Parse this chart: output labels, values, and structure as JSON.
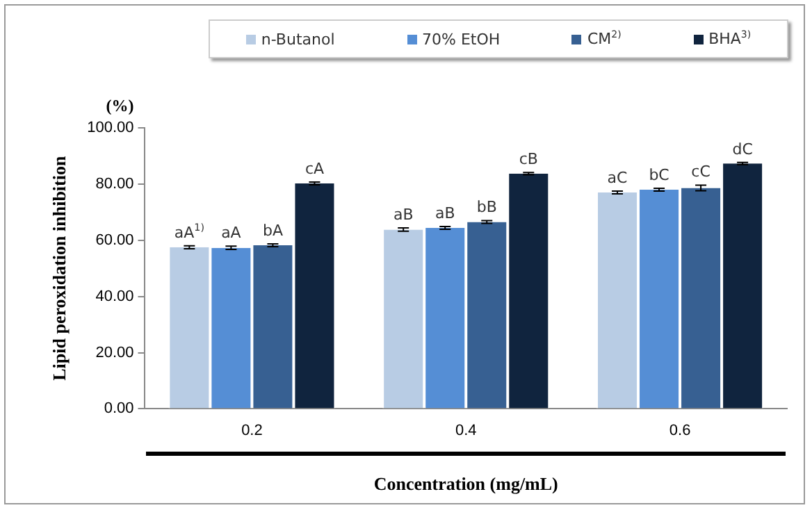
{
  "chart_data": {
    "type": "bar",
    "xlabel": "Concentration (mg/mL)",
    "ylabel": "Lipid peroxidation inhibition",
    "annotations": [
      "(%)",
      "aA$^{1)}$",
      "aA",
      "bA",
      "cA",
      "aB",
      "aB",
      "bB",
      "cB",
      "aC",
      "bC",
      "cC",
      "dC"
    ],
    "categories": [
      "0.2",
      "0.4",
      "0.6"
    ],
    "ylim": [
      0,
      100
    ],
    "yticks": [
      {
        "value": 0,
        "label": "0.00"
      },
      {
        "value": 20,
        "label": "20.00"
      },
      {
        "value": 40,
        "label": "40.00"
      },
      {
        "value": 60,
        "label": "60.00"
      },
      {
        "value": 80,
        "label": "80.00"
      },
      {
        "value": 100,
        "label": "100.00"
      }
    ],
    "grid": false,
    "legend": "top",
    "series": [
      {
        "name": "n-Butanol",
        "color": "#b8cce4",
        "values": [
          57.5,
          63.8,
          77.0
        ],
        "errors": [
          0.5,
          0.6,
          0.5
        ]
      },
      {
        "name": "70% EtOH",
        "color": "#558ed5",
        "values": [
          57.3,
          64.4,
          78.0
        ],
        "errors": [
          0.6,
          0.5,
          0.5
        ]
      },
      {
        "name": "CM$^{2)}$",
        "color": "#376092",
        "values": [
          58.2,
          66.5,
          78.6
        ],
        "errors": [
          0.5,
          0.5,
          1.0
        ]
      },
      {
        "name": "BHA$^{3)}$",
        "color": "#10243e",
        "values": [
          80.2,
          83.7,
          87.3
        ],
        "errors": [
          0.5,
          0.4,
          0.4
        ]
      }
    ]
  }
}
